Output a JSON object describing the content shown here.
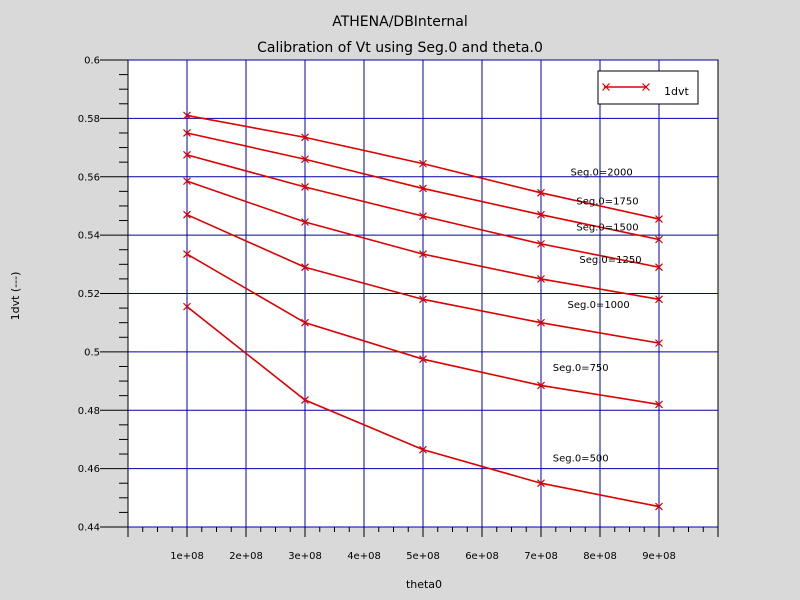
{
  "window": {
    "title": "ATHENA/DBInternal"
  },
  "chart_data": {
    "type": "line",
    "title": "ATHENA/DBInternal",
    "subtitle": "Calibration of Vt using Seg.0 and theta.0",
    "xlabel": "theta0",
    "ylabel": "1dvt (---)",
    "xlim": [
      0,
      1000000000
    ],
    "ylim": [
      0.44,
      0.6
    ],
    "x_ticks": [
      100000000,
      200000000,
      300000000,
      400000000,
      500000000,
      600000000,
      700000000,
      800000000,
      900000000
    ],
    "x_tick_labels": [
      "1e+08",
      "2e+08",
      "3e+08",
      "4e+08",
      "5e+08",
      "6e+08",
      "7e+08",
      "8e+08",
      "9e+08"
    ],
    "y_ticks": [
      0.44,
      0.46,
      0.48,
      0.5,
      0.52,
      0.54,
      0.56,
      0.58,
      0.6
    ],
    "y_tick_labels": [
      "0.44",
      "0.46",
      "0.48",
      "0.5",
      "0.52",
      "0.54",
      "0.56",
      "0.58",
      "0.6"
    ],
    "grid": true,
    "legend": {
      "position": "top-right",
      "entries": [
        "1dvt"
      ]
    },
    "x": [
      100000000,
      300000000,
      500000000,
      700000000,
      900000000
    ],
    "series": [
      {
        "name": "1dvt",
        "group": "Seg.0=2000",
        "values": [
          0.581,
          0.5735,
          0.5645,
          0.5545,
          0.5455
        ]
      },
      {
        "name": "1dvt",
        "group": "Seg.0=1750",
        "values": [
          0.575,
          0.566,
          0.556,
          0.547,
          0.5385
        ]
      },
      {
        "name": "1dvt",
        "group": "Seg.0=1500",
        "values": [
          0.5675,
          0.5565,
          0.5465,
          0.537,
          0.529
        ]
      },
      {
        "name": "1dvt",
        "group": "Seg.0=1250",
        "values": [
          0.5585,
          0.5445,
          0.5335,
          0.525,
          0.518
        ]
      },
      {
        "name": "1dvt",
        "group": "Seg.0=1000",
        "values": [
          0.547,
          0.529,
          0.518,
          0.51,
          0.503
        ]
      },
      {
        "name": "1dvt",
        "group": "Seg.0=750",
        "values": [
          0.5335,
          0.51,
          0.4975,
          0.4885,
          0.482
        ]
      },
      {
        "name": "1dvt",
        "group": "Seg.0=500",
        "values": [
          0.5155,
          0.4835,
          0.4665,
          0.455,
          0.447
        ]
      }
    ],
    "annotations": [
      {
        "text": "Seg.0=2000",
        "x": 750000000,
        "y": 0.5605
      },
      {
        "text": "Seg.0=1750",
        "x": 760000000,
        "y": 0.5505
      },
      {
        "text": "Seg.0=1500",
        "x": 760000000,
        "y": 0.5415
      },
      {
        "text": "Seg.0=1250",
        "x": 765000000,
        "y": 0.5305
      },
      {
        "text": "Seg.0=1000",
        "x": 745000000,
        "y": 0.515
      },
      {
        "text": "Seg.0=750",
        "x": 720000000,
        "y": 0.4935
      },
      {
        "text": "Seg.0=500",
        "x": 720000000,
        "y": 0.4625
      }
    ],
    "colors": {
      "line": "#dd0000",
      "grid": "#0000aa",
      "background": "#ffffff",
      "frame": "#000000"
    }
  }
}
